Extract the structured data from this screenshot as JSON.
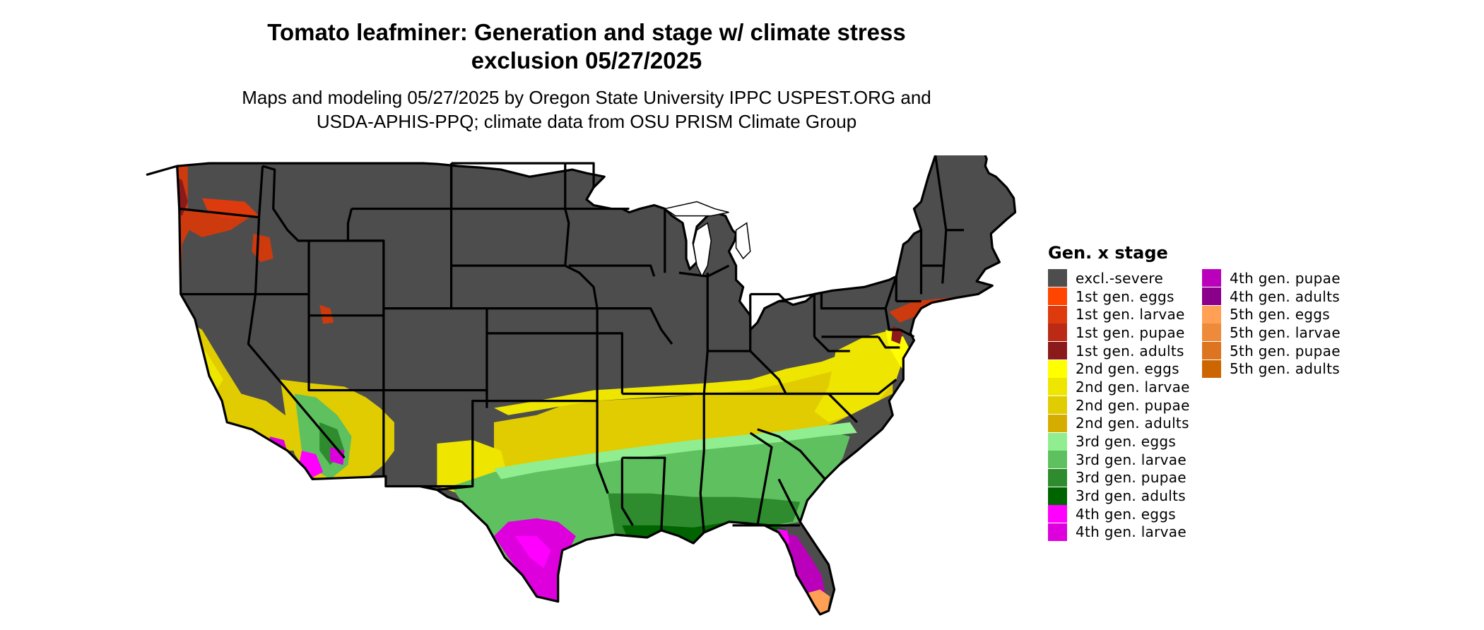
{
  "title": {
    "line1": "Tomato leafminer: Generation and stage w/ climate stress",
    "line2": "exclusion 05/27/2025"
  },
  "subtitle": {
    "line1": "Maps and modeling 05/27/2025 by Oregon State University IPPC USPEST.ORG and",
    "line2": "USDA-APHIS-PPQ; climate data from OSU PRISM Climate Group"
  },
  "legend": {
    "title": "Gen. x stage",
    "items": [
      {
        "label": "excl.-severe",
        "color": "#4d4d4d"
      },
      {
        "label": "1st gen. eggs",
        "color": "#ff4500"
      },
      {
        "label": "1st gen. larvae",
        "color": "#dd3a0e"
      },
      {
        "label": "1st gen. pupae",
        "color": "#bb2a14"
      },
      {
        "label": "1st gen. adults",
        "color": "#8b1a1a"
      },
      {
        "label": "2nd gen. eggs",
        "color": "#ffff00"
      },
      {
        "label": "2nd gen. larvae",
        "color": "#eee500"
      },
      {
        "label": "2nd gen. pupae",
        "color": "#e0cc00"
      },
      {
        "label": "2nd gen. adults",
        "color": "#d4ad00"
      },
      {
        "label": "3rd gen. eggs",
        "color": "#90ee90"
      },
      {
        "label": "3rd gen. larvae",
        "color": "#5fc05f"
      },
      {
        "label": "3rd gen. pupae",
        "color": "#2e8b2e"
      },
      {
        "label": "3rd gen. adults",
        "color": "#006400"
      },
      {
        "label": "4th gen. eggs",
        "color": "#ff00ff"
      },
      {
        "label": "4th gen. larvae",
        "color": "#dd00dd"
      },
      {
        "label": "4th gen. pupae",
        "color": "#bb00bb"
      },
      {
        "label": "4th gen. adults",
        "color": "#8b008b"
      },
      {
        "label": "5th gen. eggs",
        "color": "#ffa054"
      },
      {
        "label": "5th gen. larvae",
        "color": "#ee8b3a"
      },
      {
        "label": "5th gen. pupae",
        "color": "#dd7420"
      },
      {
        "label": "5th gen. adults",
        "color": "#cd6600"
      }
    ]
  }
}
